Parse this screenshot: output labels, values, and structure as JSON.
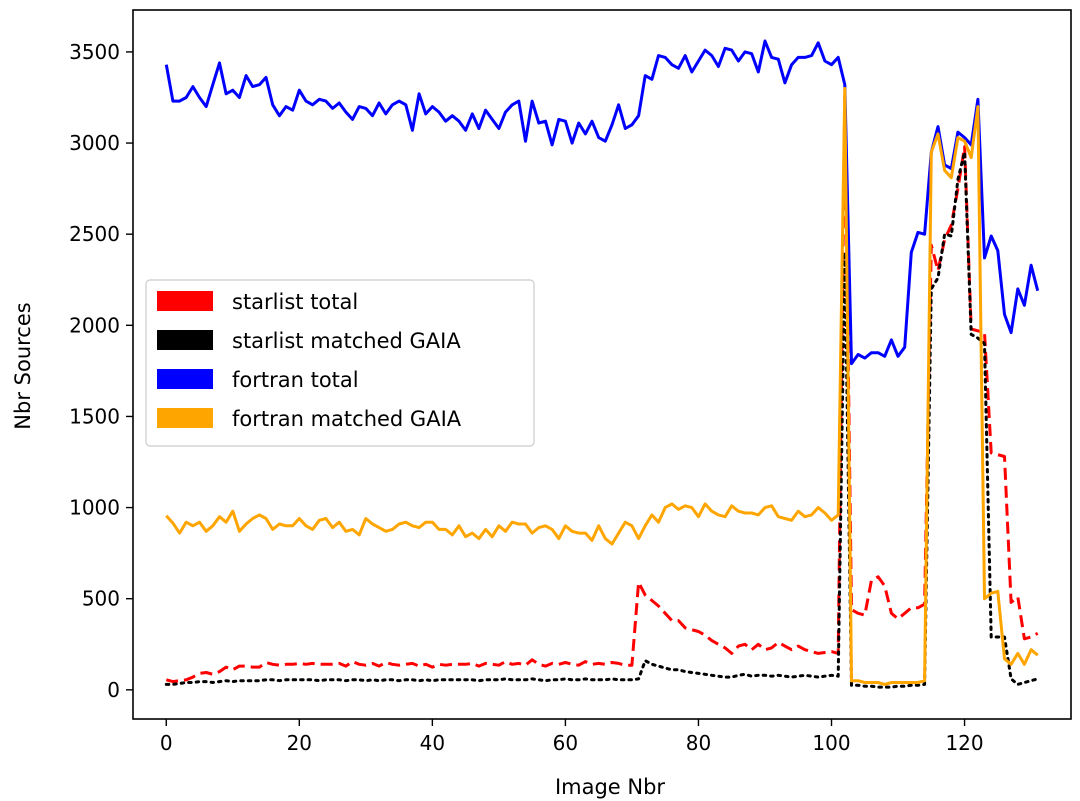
{
  "chart_data": {
    "type": "line",
    "xlabel": "Image Nbr",
    "ylabel": "Nbr Sources",
    "xlim": [
      -5,
      136
    ],
    "ylim": [
      -160,
      3730
    ],
    "xticks": [
      0,
      20,
      40,
      60,
      80,
      100,
      120
    ],
    "yticks": [
      0,
      500,
      1000,
      1500,
      2000,
      2500,
      3000,
      3500
    ],
    "x_tick_labels": [
      "0",
      "20",
      "40",
      "60",
      "80",
      "100",
      "120"
    ],
    "y_tick_labels": [
      "0",
      "500",
      "1000",
      "1500",
      "2000",
      "2500",
      "3000",
      "3500"
    ],
    "grid": false,
    "legend_position": "center-left",
    "series": [
      {
        "name": "starlist total",
        "color": "#ff0000",
        "style": "dashed",
        "x": [
          0,
          1,
          2,
          3,
          4,
          5,
          6,
          7,
          8,
          9,
          10,
          11,
          12,
          13,
          14,
          15,
          16,
          17,
          18,
          19,
          20,
          21,
          22,
          23,
          24,
          25,
          26,
          27,
          28,
          29,
          30,
          31,
          32,
          33,
          34,
          35,
          36,
          37,
          38,
          39,
          40,
          41,
          42,
          43,
          44,
          45,
          46,
          47,
          48,
          49,
          50,
          51,
          52,
          53,
          54,
          55,
          56,
          57,
          58,
          59,
          60,
          61,
          62,
          63,
          64,
          65,
          66,
          67,
          68,
          69,
          70,
          71,
          72,
          73,
          74,
          75,
          76,
          77,
          78,
          79,
          80,
          81,
          82,
          83,
          84,
          85,
          86,
          87,
          88,
          89,
          90,
          91,
          92,
          93,
          94,
          95,
          96,
          97,
          98,
          99,
          100,
          101,
          102,
          103,
          104,
          105,
          106,
          107,
          108,
          109,
          110,
          111,
          112,
          113,
          114,
          115,
          116,
          117,
          118,
          119,
          120,
          121,
          122,
          123,
          124,
          125,
          126,
          127,
          128,
          129,
          130,
          131
        ],
        "y": [
          55,
          45,
          50,
          55,
          70,
          90,
          95,
          85,
          100,
          125,
          110,
          130,
          130,
          125,
          125,
          150,
          140,
          135,
          140,
          140,
          145,
          140,
          145,
          140,
          140,
          140,
          145,
          130,
          155,
          140,
          135,
          145,
          130,
          150,
          140,
          135,
          140,
          145,
          130,
          140,
          125,
          140,
          135,
          140,
          140,
          140,
          145,
          130,
          145,
          140,
          135,
          155,
          140,
          145,
          135,
          165,
          140,
          130,
          145,
          140,
          150,
          140,
          135,
          155,
          140,
          145,
          140,
          150,
          145,
          135,
          135,
          590,
          520,
          490,
          460,
          420,
          380,
          380,
          340,
          330,
          320,
          300,
          270,
          250,
          230,
          200,
          240,
          250,
          220,
          250,
          220,
          230,
          260,
          240,
          220,
          240,
          220,
          210,
          200,
          205,
          210,
          200,
          3260,
          440,
          420,
          410,
          600,
          620,
          570,
          420,
          390,
          420,
          450,
          450,
          470,
          2440,
          2300,
          2470,
          2550,
          2750,
          2980,
          1980,
          1970,
          1960,
          1300,
          1290,
          1280,
          480,
          510,
          280,
          290,
          310
        ]
      },
      {
        "name": "starlist matched GAIA",
        "color": "#000000",
        "style": "dotted",
        "x": [
          0,
          1,
          2,
          3,
          4,
          5,
          6,
          7,
          8,
          9,
          10,
          11,
          12,
          13,
          14,
          15,
          16,
          17,
          18,
          19,
          20,
          21,
          22,
          23,
          24,
          25,
          26,
          27,
          28,
          29,
          30,
          31,
          32,
          33,
          34,
          35,
          36,
          37,
          38,
          39,
          40,
          41,
          42,
          43,
          44,
          45,
          46,
          47,
          48,
          49,
          50,
          51,
          52,
          53,
          54,
          55,
          56,
          57,
          58,
          59,
          60,
          61,
          62,
          63,
          64,
          65,
          66,
          67,
          68,
          69,
          70,
          71,
          72,
          73,
          74,
          75,
          76,
          77,
          78,
          79,
          80,
          81,
          82,
          83,
          84,
          85,
          86,
          87,
          88,
          89,
          90,
          91,
          92,
          93,
          94,
          95,
          96,
          97,
          98,
          99,
          100,
          101,
          102,
          103,
          104,
          105,
          106,
          107,
          108,
          109,
          110,
          111,
          112,
          113,
          114,
          115,
          116,
          117,
          118,
          119,
          120,
          121,
          122,
          123,
          124,
          125,
          126,
          127,
          128,
          129,
          130,
          131
        ],
        "y": [
          30,
          30,
          35,
          40,
          40,
          45,
          45,
          40,
          45,
          50,
          45,
          50,
          50,
          50,
          50,
          55,
          55,
          50,
          55,
          55,
          55,
          55,
          55,
          50,
          55,
          55,
          55,
          50,
          55,
          55,
          50,
          55,
          50,
          55,
          55,
          50,
          55,
          55,
          50,
          55,
          50,
          55,
          55,
          55,
          55,
          55,
          55,
          50,
          55,
          55,
          55,
          60,
          55,
          55,
          55,
          60,
          55,
          50,
          55,
          55,
          60,
          55,
          55,
          60,
          55,
          55,
          55,
          60,
          55,
          55,
          55,
          60,
          160,
          140,
          130,
          120,
          110,
          110,
          100,
          95,
          90,
          85,
          80,
          75,
          70,
          70,
          80,
          85,
          75,
          80,
          80,
          75,
          80,
          75,
          70,
          75,
          80,
          75,
          70,
          75,
          80,
          75,
          2400,
          25,
          25,
          20,
          20,
          15,
          15,
          15,
          20,
          20,
          25,
          25,
          30,
          2200,
          2260,
          2500,
          2490,
          2800,
          2950,
          1950,
          1930,
          1900,
          290,
          290,
          290,
          60,
          30,
          40,
          50,
          60
        ]
      },
      {
        "name": "fortran total",
        "color": "#0000ff",
        "style": "solid",
        "x": [
          0,
          1,
          2,
          3,
          4,
          5,
          6,
          7,
          8,
          9,
          10,
          11,
          12,
          13,
          14,
          15,
          16,
          17,
          18,
          19,
          20,
          21,
          22,
          23,
          24,
          25,
          26,
          27,
          28,
          29,
          30,
          31,
          32,
          33,
          34,
          35,
          36,
          37,
          38,
          39,
          40,
          41,
          42,
          43,
          44,
          45,
          46,
          47,
          48,
          49,
          50,
          51,
          52,
          53,
          54,
          55,
          56,
          57,
          58,
          59,
          60,
          61,
          62,
          63,
          64,
          65,
          66,
          67,
          68,
          69,
          70,
          71,
          72,
          73,
          74,
          75,
          76,
          77,
          78,
          79,
          80,
          81,
          82,
          83,
          84,
          85,
          86,
          87,
          88,
          89,
          90,
          91,
          92,
          93,
          94,
          95,
          96,
          97,
          98,
          99,
          100,
          101,
          102,
          103,
          104,
          105,
          106,
          107,
          108,
          109,
          110,
          111,
          112,
          113,
          114,
          115,
          116,
          117,
          118,
          119,
          120,
          121,
          122,
          123,
          124,
          125,
          126,
          127,
          128,
          129,
          130,
          131
        ],
        "y": [
          3430,
          3230,
          3230,
          3250,
          3310,
          3250,
          3200,
          3320,
          3440,
          3270,
          3290,
          3250,
          3370,
          3310,
          3320,
          3360,
          3210,
          3150,
          3200,
          3180,
          3290,
          3230,
          3210,
          3240,
          3230,
          3190,
          3220,
          3170,
          3130,
          3200,
          3190,
          3150,
          3220,
          3160,
          3210,
          3230,
          3210,
          3070,
          3270,
          3160,
          3200,
          3170,
          3120,
          3150,
          3120,
          3070,
          3160,
          3080,
          3180,
          3130,
          3080,
          3170,
          3210,
          3230,
          3010,
          3230,
          3110,
          3120,
          2990,
          3130,
          3120,
          3000,
          3110,
          3050,
          3120,
          3030,
          3010,
          3100,
          3210,
          3080,
          3100,
          3150,
          3370,
          3350,
          3480,
          3470,
          3430,
          3410,
          3480,
          3390,
          3450,
          3510,
          3480,
          3420,
          3520,
          3510,
          3450,
          3500,
          3490,
          3390,
          3560,
          3470,
          3460,
          3330,
          3430,
          3470,
          3470,
          3480,
          3550,
          3450,
          3430,
          3470,
          3320,
          1790,
          1840,
          1820,
          1850,
          1850,
          1830,
          1920,
          1830,
          1880,
          2400,
          2510,
          2500,
          2950,
          3090,
          2880,
          2860,
          3060,
          3030,
          2990,
          3240,
          2370,
          2490,
          2410,
          2060,
          1960,
          2200,
          2110,
          2330,
          2190
        ]
      },
      {
        "name": "fortran matched GAIA",
        "color": "#ffa500",
        "style": "solid",
        "x": [
          0,
          1,
          2,
          3,
          4,
          5,
          6,
          7,
          8,
          9,
          10,
          11,
          12,
          13,
          14,
          15,
          16,
          17,
          18,
          19,
          20,
          21,
          22,
          23,
          24,
          25,
          26,
          27,
          28,
          29,
          30,
          31,
          32,
          33,
          34,
          35,
          36,
          37,
          38,
          39,
          40,
          41,
          42,
          43,
          44,
          45,
          46,
          47,
          48,
          49,
          50,
          51,
          52,
          53,
          54,
          55,
          56,
          57,
          58,
          59,
          60,
          61,
          62,
          63,
          64,
          65,
          66,
          67,
          68,
          69,
          70,
          71,
          72,
          73,
          74,
          75,
          76,
          77,
          78,
          79,
          80,
          81,
          82,
          83,
          84,
          85,
          86,
          87,
          88,
          89,
          90,
          91,
          92,
          93,
          94,
          95,
          96,
          97,
          98,
          99,
          100,
          101,
          102,
          103,
          104,
          105,
          106,
          107,
          108,
          109,
          110,
          111,
          112,
          113,
          114,
          115,
          116,
          117,
          118,
          119,
          120,
          121,
          122,
          123,
          124,
          125,
          126,
          127,
          128,
          129,
          130,
          131
        ],
        "y": [
          955,
          915,
          860,
          920,
          900,
          920,
          870,
          900,
          950,
          920,
          980,
          870,
          910,
          940,
          960,
          940,
          880,
          910,
          900,
          900,
          940,
          900,
          880,
          930,
          940,
          890,
          920,
          870,
          880,
          850,
          940,
          910,
          890,
          870,
          880,
          910,
          920,
          900,
          890,
          920,
          920,
          880,
          880,
          850,
          900,
          840,
          860,
          830,
          880,
          840,
          900,
          870,
          920,
          910,
          910,
          860,
          890,
          900,
          880,
          830,
          900,
          870,
          860,
          860,
          820,
          900,
          830,
          800,
          860,
          920,
          900,
          830,
          900,
          960,
          920,
          1000,
          1020,
          990,
          1010,
          1000,
          950,
          1020,
          980,
          960,
          950,
          1010,
          980,
          970,
          970,
          960,
          1000,
          1010,
          950,
          940,
          930,
          980,
          950,
          960,
          1000,
          970,
          930,
          960,
          3300,
          50,
          50,
          40,
          40,
          40,
          30,
          40,
          40,
          40,
          40,
          40,
          50,
          2950,
          3050,
          2850,
          2810,
          3030,
          3010,
          2920,
          3200,
          500,
          530,
          540,
          170,
          140,
          200,
          140,
          220,
          190
        ]
      }
    ]
  }
}
